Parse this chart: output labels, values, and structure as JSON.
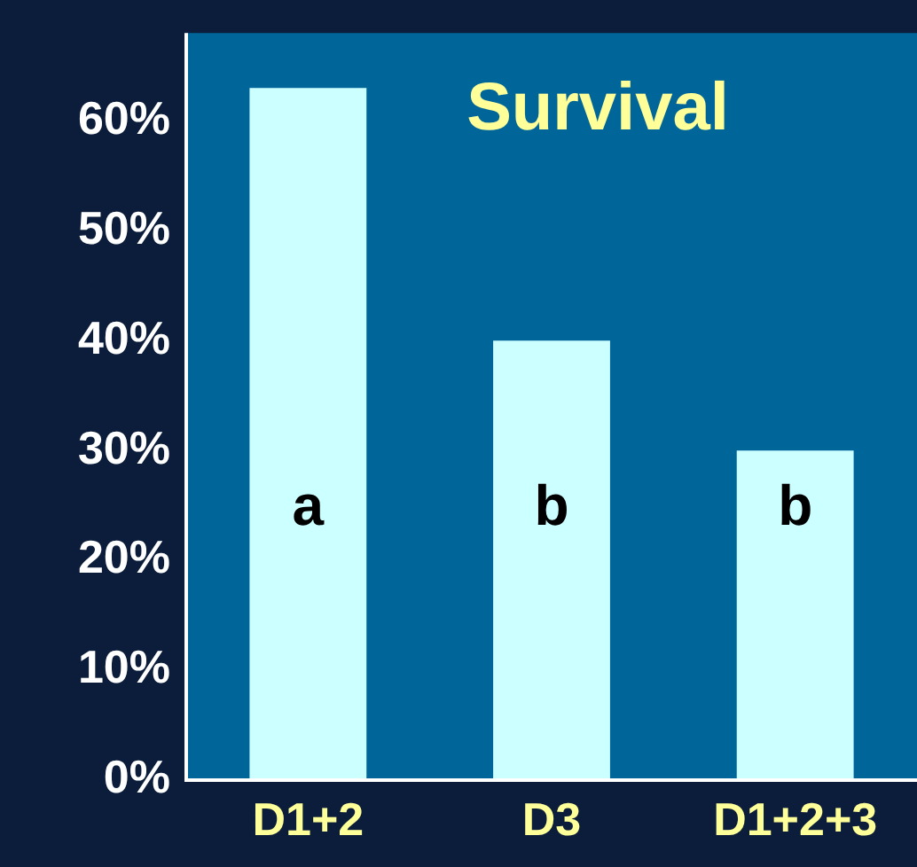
{
  "chart_data": {
    "type": "bar",
    "title": "Survival",
    "categories": [
      "D1+2",
      "D3",
      "D1+2+3"
    ],
    "values": [
      63,
      40,
      30
    ],
    "color": "#ccffff",
    "ylim": [
      0,
      68
    ],
    "yticks": [
      {
        "value": 0,
        "label": "0%"
      },
      {
        "value": 10,
        "label": "10%"
      },
      {
        "value": 20,
        "label": "20%"
      },
      {
        "value": 30,
        "label": "30%"
      },
      {
        "value": 40,
        "label": "40%"
      },
      {
        "value": 50,
        "label": "50%"
      },
      {
        "value": 60,
        "label": "60%"
      }
    ],
    "annotations": [
      "a",
      "b",
      "b"
    ],
    "grid": false,
    "legend": false
  }
}
